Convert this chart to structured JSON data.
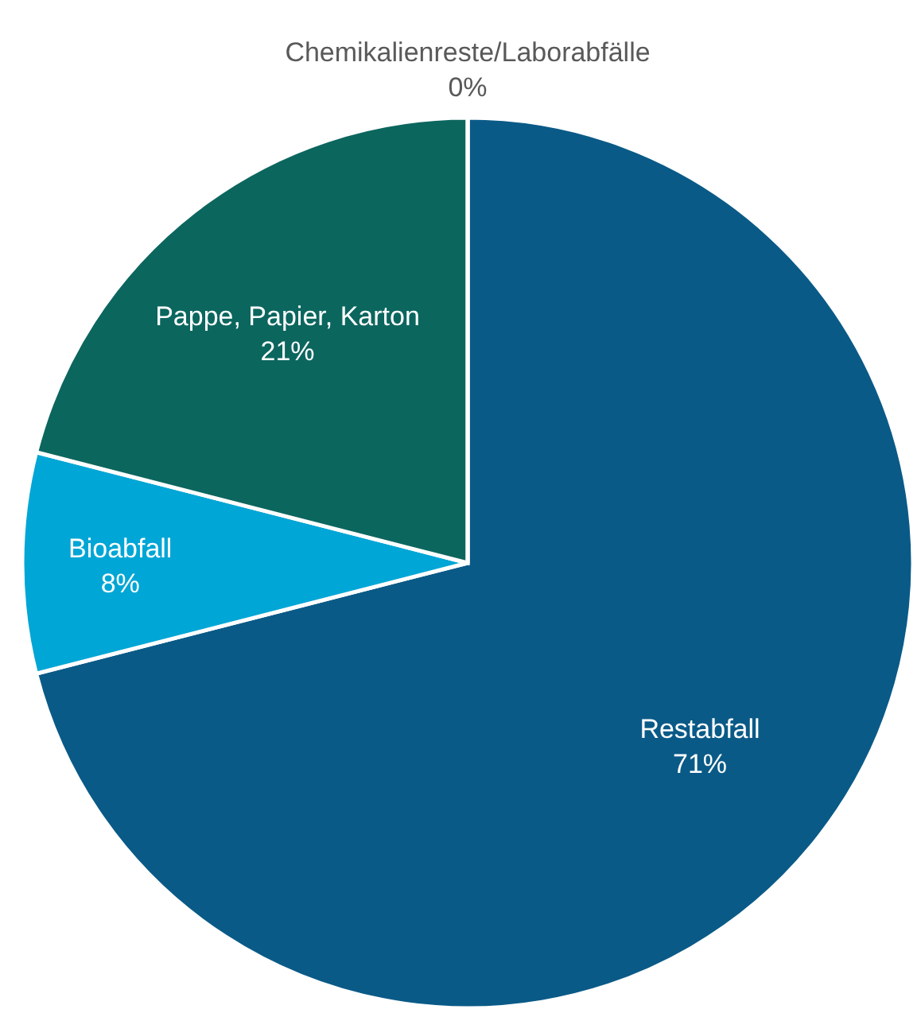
{
  "chart_data": {
    "type": "pie",
    "categories": [
      "Restabfall",
      "Bioabfall",
      "Pappe, Papier, Karton",
      "Chemikalienreste/Laborabfälle"
    ],
    "values": [
      71,
      8,
      21,
      0
    ],
    "colors": [
      "#0a5a87",
      "#00a6d6",
      "#0b665e",
      "#8ab839"
    ],
    "value_labels": [
      "71%",
      "8%",
      "21%",
      "0%"
    ]
  }
}
